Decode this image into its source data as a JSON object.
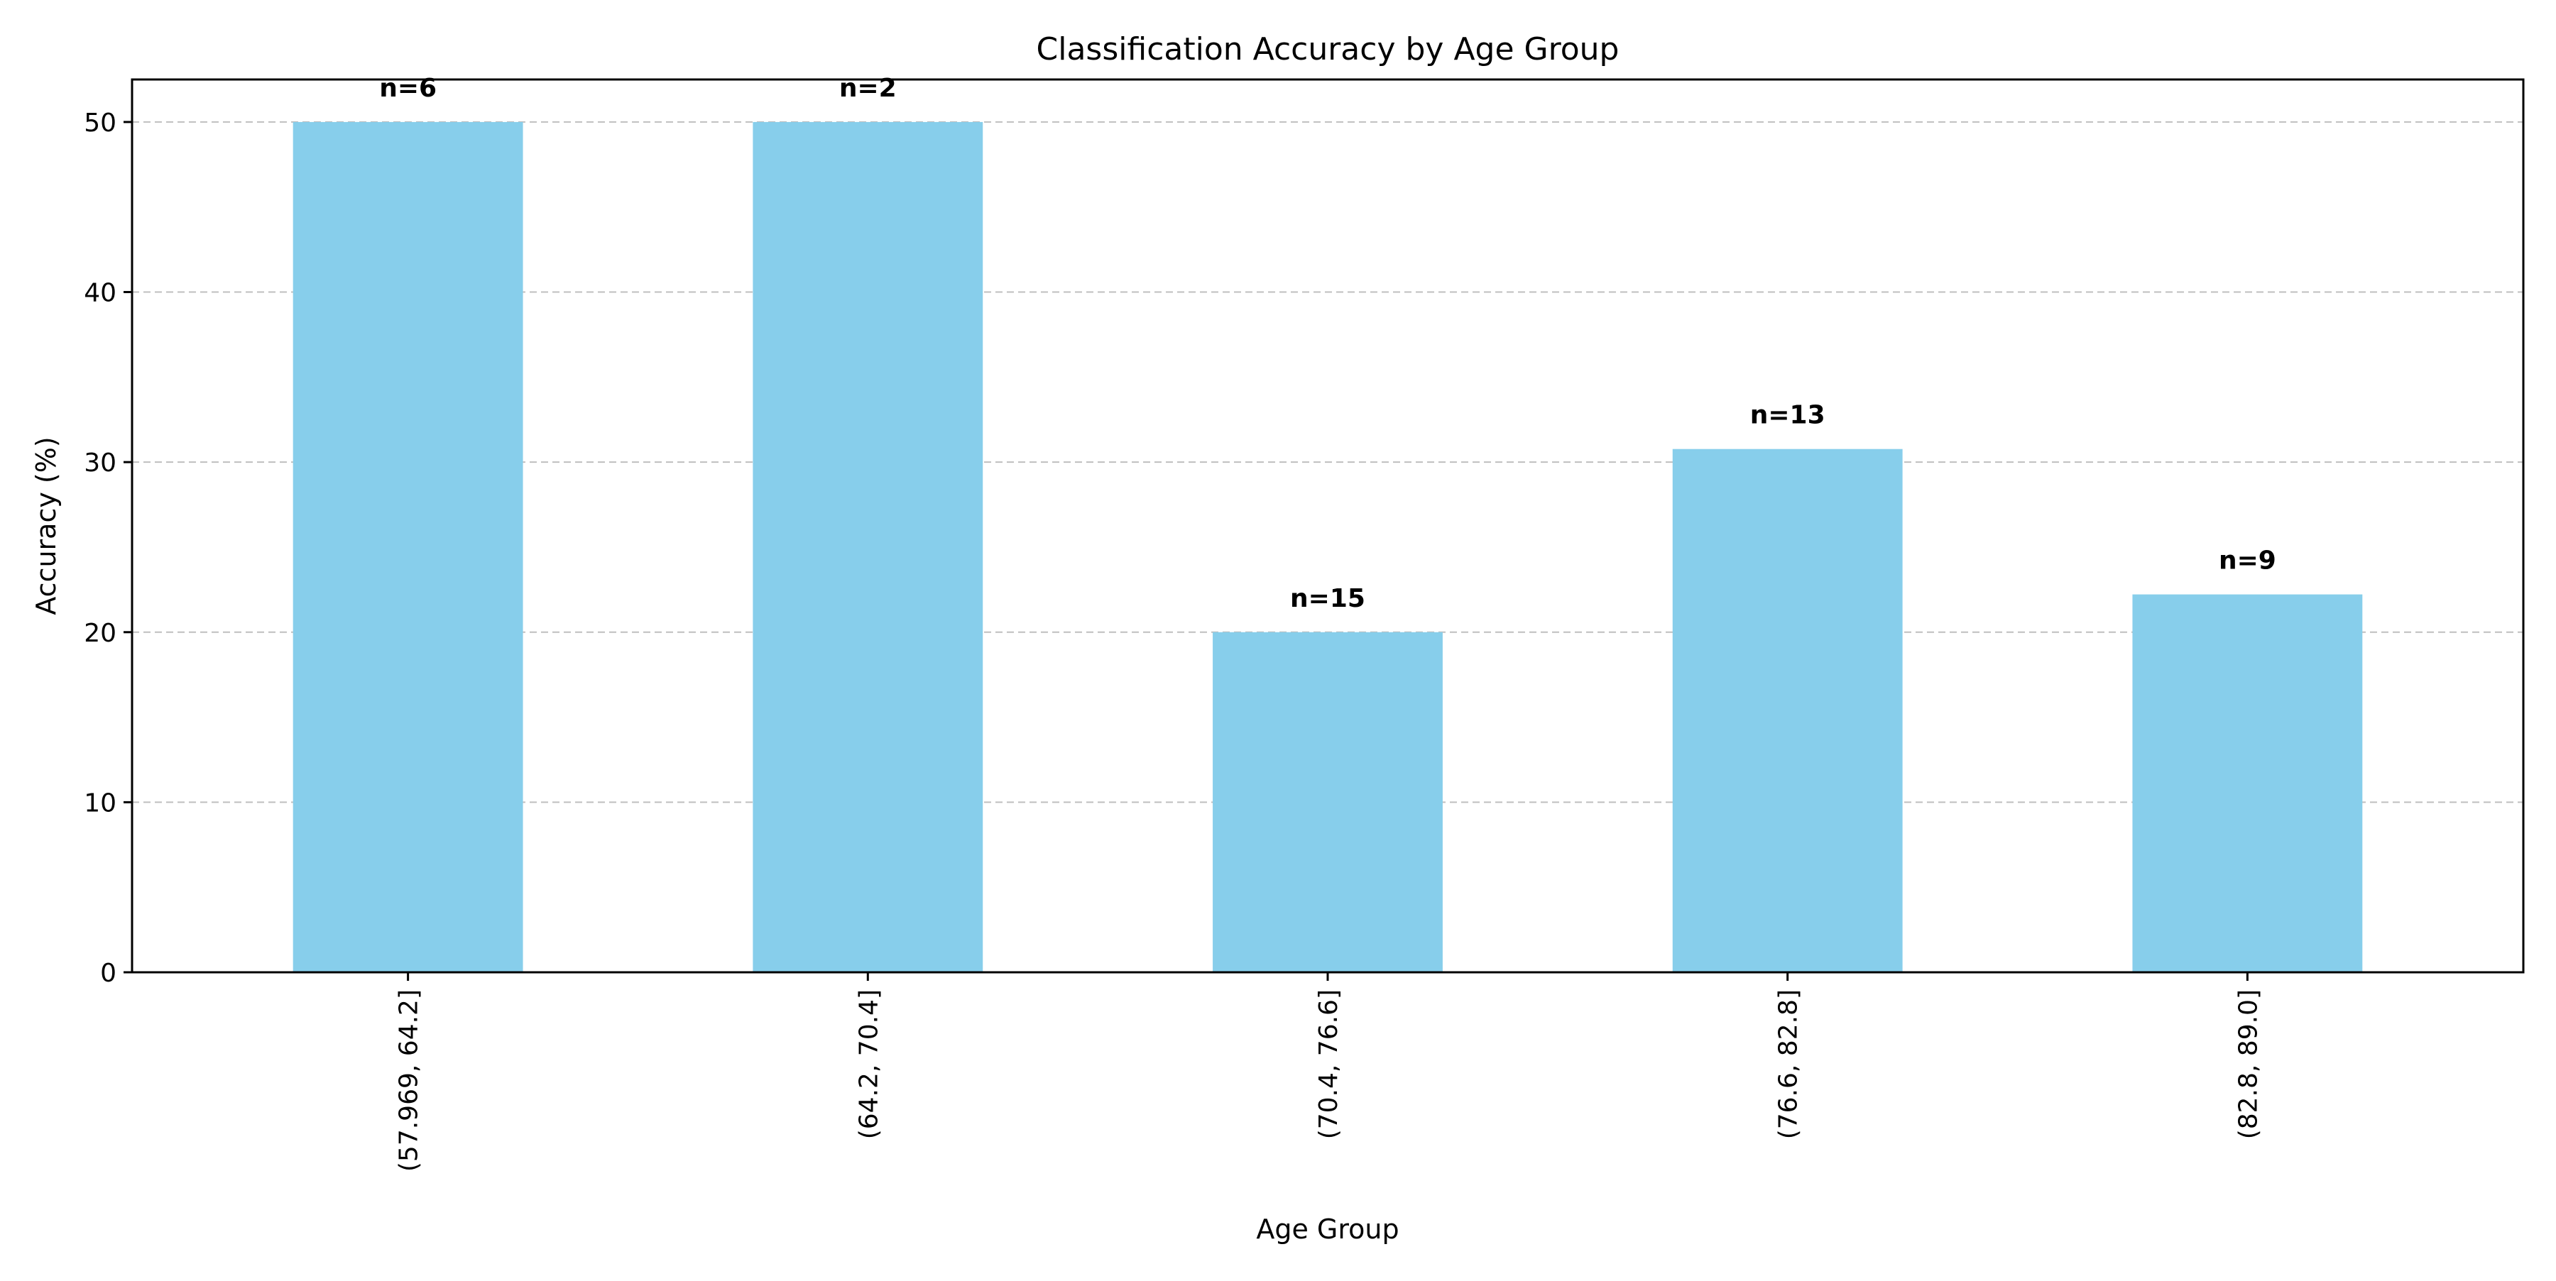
{
  "chart_data": {
    "type": "bar",
    "title": "Classification Accuracy by Age Group",
    "xlabel": "Age Group",
    "ylabel": "Accuracy (%)",
    "categories": [
      "(57.969, 64.2]",
      "(64.2, 70.4]",
      "(70.4, 76.6]",
      "(76.6, 82.8]",
      "(82.8, 89.0]"
    ],
    "values": [
      50.0,
      50.0,
      20.0,
      30.77,
      22.22
    ],
    "data_labels": [
      "n=6",
      "n=2",
      "n=15",
      "n=13",
      "n=9"
    ],
    "ylim": [
      0,
      52.5
    ],
    "yticks": [
      0,
      10,
      20,
      30,
      40,
      50
    ],
    "ytick_labels": [
      "0",
      "10",
      "20",
      "30",
      "40",
      "50"
    ],
    "grid": "y-dashed",
    "colors": {
      "bar": "#87CEEB",
      "grid": "#b0b0b0",
      "axis": "#000000"
    }
  }
}
